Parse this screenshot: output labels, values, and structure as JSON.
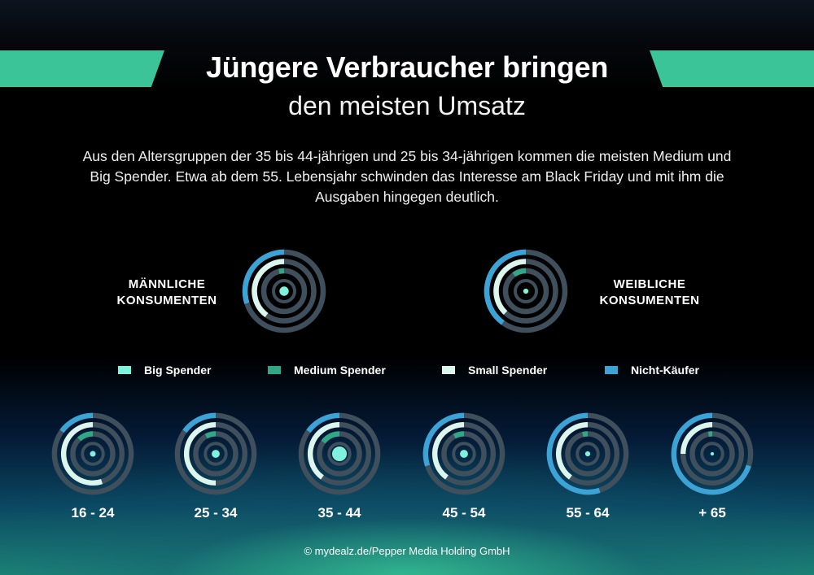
{
  "header": {
    "title": "Jüngere Verbraucher bringen",
    "subtitle": "den meisten Umsatz"
  },
  "intro": "Aus den Altersgruppen der 35 bis 44-jährigen und 25 bis 34-jährigen kommen die meisten Medium und Big Spender. Etwa ab dem 55. Lebensjahr schwinden das Interesse am Black Friday und mit ihm die Ausgaben hingegen deutlich.",
  "male_label": [
    "MÄNNLICHE",
    "KONSUMENTEN"
  ],
  "female_label": [
    "WEIBLICHE",
    "KONSUMENTEN"
  ],
  "legend": [
    {
      "label": "Big Spender",
      "color": "#7ff1dd"
    },
    {
      "label": "Medium Spender",
      "color": "#2fa887"
    },
    {
      "label": "Small Spender",
      "color": "#dcf6ee"
    },
    {
      "label": "Nicht-Käufer",
      "color": "#3ba3d6"
    }
  ],
  "colors": {
    "track": "#3f4f5c",
    "banner": "#3cc499"
  },
  "footer": "© mydealz.de/Pepper Media Holding GmbH",
  "chart_data": {
    "type": "radial-bar",
    "categories": [
      "Nicht-Käufer",
      "Small Spender",
      "Medium Spender",
      "Big Spender"
    ],
    "groups": [
      {
        "label": "MÄNNLICHE KONSUMENTEN",
        "nicht_kaeufer": 0.3,
        "small_spender": 0.4,
        "medium_spender": 0.04,
        "big_spender": 0.3
      },
      {
        "label": "WEIBLICHE KONSUMENTEN",
        "nicht_kaeufer": 0.4,
        "small_spender": 0.38,
        "medium_spender": 0.1,
        "big_spender": 0.12
      },
      {
        "label": "16 - 24",
        "nicht_kaeufer": 0.15,
        "small_spender": 0.55,
        "medium_spender": 0.12,
        "big_spender": 0.15
      },
      {
        "label": "25 - 34",
        "nicht_kaeufer": 0.15,
        "small_spender": 0.5,
        "medium_spender": 0.08,
        "big_spender": 0.25
      },
      {
        "label": "35 - 44",
        "nicht_kaeufer": 0.15,
        "small_spender": 0.4,
        "medium_spender": 0.15,
        "big_spender": 0.55
      },
      {
        "label": "45 - 54",
        "nicht_kaeufer": 0.3,
        "small_spender": 0.4,
        "medium_spender": 0.08,
        "big_spender": 0.25
      },
      {
        "label": "55 - 64",
        "nicht_kaeufer": 0.55,
        "small_spender": 0.4,
        "medium_spender": 0.04,
        "big_spender": 0.12
      },
      {
        "label": "+ 65",
        "nicht_kaeufer": 0.7,
        "small_spender": 0.25,
        "medium_spender": 0.03,
        "big_spender": 0.05
      }
    ]
  }
}
